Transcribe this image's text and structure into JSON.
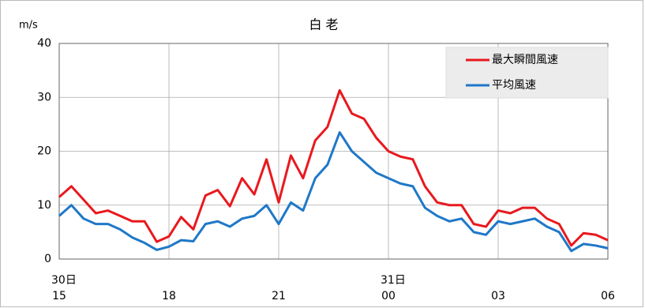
{
  "chart_data": {
    "type": "line",
    "title": "白 老",
    "y_label": "m/s",
    "x": [
      0,
      20,
      40,
      60,
      80,
      100,
      120,
      140,
      160,
      180,
      200,
      220,
      240,
      260,
      280,
      300,
      320,
      340,
      360,
      380,
      400,
      420,
      440,
      460,
      480,
      500,
      520,
      540,
      560,
      580,
      600,
      620,
      640,
      660,
      680,
      700,
      720,
      740,
      760,
      780,
      800,
      820,
      840,
      860,
      880,
      900
    ],
    "xlim": [
      0,
      900
    ],
    "xticks": [
      {
        "value": 0,
        "label": "15"
      },
      {
        "value": 180,
        "label": "18"
      },
      {
        "value": 360,
        "label": "21"
      },
      {
        "value": 540,
        "label": "00"
      },
      {
        "value": 720,
        "label": "03"
      },
      {
        "value": 900,
        "label": "06"
      }
    ],
    "day_labels": [
      {
        "value": 0,
        "label": "30日"
      },
      {
        "value": 540,
        "label": "31日"
      }
    ],
    "ylim": [
      0,
      40
    ],
    "yticks": [
      0,
      10,
      20,
      30,
      40
    ],
    "grid": true,
    "legend": "upper right",
    "series": [
      {
        "name": "最大瞬間風速",
        "color": "#e8191e",
        "values": [
          11.5,
          13.5,
          11,
          8.5,
          9,
          8,
          7,
          7,
          3.2,
          4.2,
          7.8,
          5.5,
          11.8,
          12.8,
          9.8,
          15,
          12,
          18.5,
          10.5,
          19.2,
          15,
          22,
          24.5,
          31.3,
          27,
          26,
          22.5,
          20,
          19,
          18.5,
          13.5,
          10.5,
          10,
          10,
          6.5,
          6,
          9,
          8.5,
          9.5,
          9.5,
          7.5,
          6.5,
          2.5,
          4.8,
          4.5,
          3.5
        ]
      },
      {
        "name": "平均風速",
        "color": "#1f78c8",
        "values": [
          8,
          10,
          7.5,
          6.5,
          6.5,
          5.5,
          4,
          3,
          1.7,
          2.3,
          3.5,
          3.3,
          6.5,
          7,
          6,
          7.5,
          8,
          10,
          6.5,
          10.5,
          9,
          15,
          17.5,
          23.5,
          20,
          18,
          16,
          15,
          14,
          13.5,
          9.5,
          8,
          7,
          7.5,
          5,
          4.5,
          7,
          6.5,
          7,
          7.5,
          6,
          5,
          1.5,
          2.8,
          2.5,
          2
        ]
      }
    ]
  }
}
